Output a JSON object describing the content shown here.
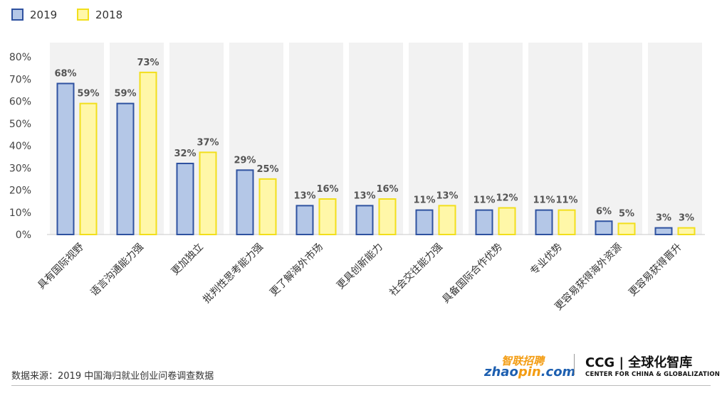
{
  "chart_data": {
    "type": "bar",
    "categories": [
      "具有国际视野",
      "语言沟通能力强",
      "更加独立",
      "批判性思考能力强",
      "更了解海外市场",
      "更具创新能力",
      "社会交往能力强",
      "具备国际合作优势",
      "专业优势",
      "更容易获得海外资源",
      "更容易获得晋升"
    ],
    "series": [
      {
        "name": "2019",
        "values": [
          68,
          59,
          32,
          29,
          13,
          13,
          11,
          11,
          11,
          6,
          3
        ],
        "labels": [
          "68%",
          "59%",
          "32%",
          "29%",
          "13%",
          "13%",
          "11%",
          "11%",
          "11%",
          "6%",
          "3%"
        ],
        "color": "#b4c7e7",
        "border": "#2f52a0"
      },
      {
        "name": "2018",
        "values": [
          59,
          73,
          37,
          25,
          16,
          16,
          13,
          12,
          11,
          5,
          3
        ],
        "labels": [
          "59%",
          "73%",
          "37%",
          "25%",
          "16%",
          "16%",
          "13%",
          "12%",
          "11%",
          "5%",
          "3%"
        ],
        "color": "#fff7a8",
        "border": "#f2df1c"
      }
    ],
    "ylim": [
      0,
      80
    ],
    "yticks": [
      0,
      10,
      20,
      30,
      40,
      50,
      60,
      70,
      80
    ],
    "ytick_labels": [
      "0%",
      "10%",
      "20%",
      "30%",
      "40%",
      "50%",
      "60%",
      "70%",
      "80%"
    ],
    "legend_position": "top-left",
    "category_background": "#f2f2f2"
  },
  "footer": {
    "source": "数据来源：2019 中国海归就业创业问卷调查数据",
    "zhaopin_cn": "智联招聘",
    "zhaopin_en_a": "zhao",
    "zhaopin_en_b": "pin",
    "zhaopin_en_c": ".com",
    "ccg_main": "CCG | 全球化智库",
    "ccg_sub": "CENTER FOR CHINA & GLOBALIZATION"
  }
}
